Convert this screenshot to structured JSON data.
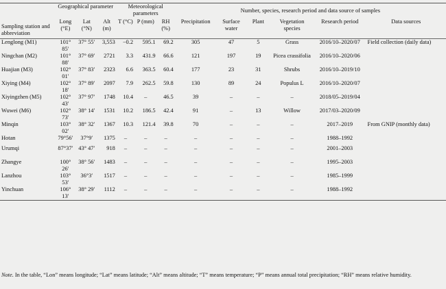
{
  "header": {
    "station": "Sampling station and abbreviation",
    "geo": "Geographical parameter",
    "met": "Meteorological parameters",
    "samples": "Number, species, research period and data source of samples",
    "long": "Long (°E)",
    "lat": "Lat (°N)",
    "alt": "Alt (m)",
    "t": "T (°C)",
    "p": "P (mm)",
    "rh": "RH (%)",
    "precip": "Precipitation",
    "surface": "Surface water",
    "plant": "Plant",
    "veg": "Vegetation species",
    "period": "Research period",
    "sources": "Data sources"
  },
  "rows": [
    {
      "station": "Lenglong (M1)",
      "long": "101° 85′",
      "lat": "37° 55′",
      "alt": "3,553",
      "t": "−0.2",
      "p": "595.1",
      "rh": "69.2",
      "precip": "305",
      "surface": "47",
      "plant": "5",
      "veg": "Grass",
      "period": "2016/10–2020/07",
      "source": "Field collection (daily data)"
    },
    {
      "station": "Ningchan (M2)",
      "long": "101° 88′",
      "lat": "37° 69′",
      "alt": "2721",
      "t": "3.3",
      "p": "431.9",
      "rh": "66.6",
      "precip": "121",
      "surface": "197",
      "plant": "19",
      "veg": "Picea crassifolia",
      "period": "2016/10–2020/06",
      "source": ""
    },
    {
      "station": "Huajian (M3)",
      "long": "102° 01′",
      "lat": "37° 83′",
      "alt": "2323",
      "t": "6.6",
      "p": "363.5",
      "rh": "60.4",
      "precip": "177",
      "surface": "23",
      "plant": "31",
      "veg": "Shrubs",
      "period": "2016/10–2019/10",
      "source": ""
    },
    {
      "station": "Xiying (M4)",
      "long": "102° 18′",
      "lat": "37° 89′",
      "alt": "2097",
      "t": "7.9",
      "p": "262.5",
      "rh": "59.8",
      "precip": "130",
      "surface": "89",
      "plant": "24",
      "veg": "Populus L",
      "period": "2016/10–2020/07",
      "source": ""
    },
    {
      "station": "Xiyingzhen (M5)",
      "long": "102° 43′",
      "lat": "37° 97′",
      "alt": "1748",
      "t": "10.4",
      "p": "–",
      "rh": "46.5",
      "precip": "39",
      "surface": "–",
      "plant": "–",
      "veg": "–",
      "period": "2018/05–2019/04",
      "source": ""
    },
    {
      "station": "Wuwei (M6)",
      "long": "102° 73′",
      "lat": "38° 14′",
      "alt": "1531",
      "t": "10.2",
      "p": "186.5",
      "rh": "42.4",
      "precip": "91",
      "surface": "–",
      "plant": "13",
      "veg": "Willow",
      "period": "2017/03–2020/09",
      "source": ""
    },
    {
      "station": "Minqin",
      "long": "103° 02′",
      "lat": "38° 32′",
      "alt": "1367",
      "t": "10.3",
      "p": "121.4",
      "rh": "39.8",
      "precip": "70",
      "surface": "–",
      "plant": "–",
      "veg": "–",
      "period": "2017–2019",
      "source": "From GNIP (monthly data)"
    },
    {
      "station": "Hotan",
      "long": "79°56′",
      "lat": "37°9′",
      "alt": "1375",
      "t": "–",
      "p": "–",
      "rh": "–",
      "precip": "–",
      "surface": "–",
      "plant": "–",
      "veg": "–",
      "period": "1988–1992",
      "source": ""
    },
    {
      "station": "Urumqi",
      "long": "87°37′",
      "lat": "43° 47′",
      "alt": "918",
      "t": "–",
      "p": "–",
      "rh": "–",
      "precip": "–",
      "surface": "–",
      "plant": "–",
      "veg": "–",
      "period": "2001–2003",
      "source": ""
    },
    {
      "station": "Zhangye",
      "long": "100° 26′",
      "lat": "38° 56′",
      "alt": "1483",
      "t": "–",
      "p": "–",
      "rh": "–",
      "precip": "–",
      "surface": "–",
      "plant": "–",
      "veg": "–",
      "period": "1995–2003",
      "source": ""
    },
    {
      "station": "Lanzhou",
      "long": "103° 53′",
      "lat": "36°3′",
      "alt": "1517",
      "t": "–",
      "p": "–",
      "rh": "–",
      "precip": "–",
      "surface": "–",
      "plant": "–",
      "veg": "–",
      "period": "1985–1999",
      "source": ""
    },
    {
      "station": "Yinchuan",
      "long": "106° 13′",
      "lat": "38° 29′",
      "alt": "1112",
      "t": "–",
      "p": "–",
      "rh": "–",
      "precip": "–",
      "surface": "–",
      "plant": "–",
      "veg": "–",
      "period": "1988–1992",
      "source": ""
    }
  ],
  "note": {
    "label": "Note",
    "text": ". In the table, “Lon” means longitude; “Lat” means latitude; “Alt” means altitude; “T” means temperature; “P” means annual total precipitation; “RH” means relative humidity."
  }
}
